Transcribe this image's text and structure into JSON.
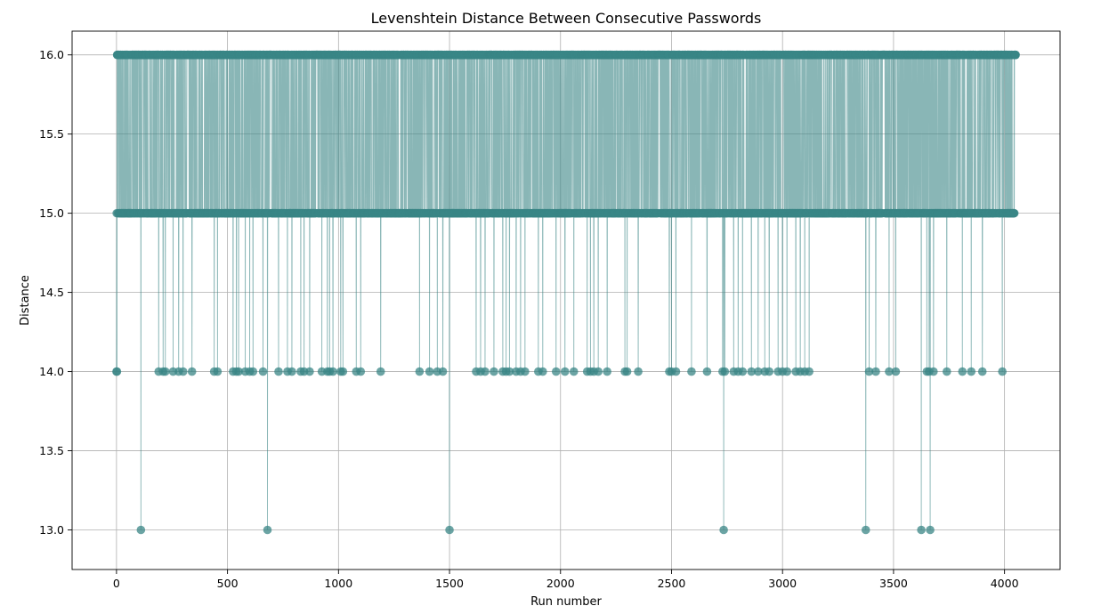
{
  "chart_data": {
    "type": "line",
    "title": "Levenshtein Distance Between Consecutive Passwords",
    "xlabel": "Run number",
    "ylabel": "Distance",
    "xlim": [
      -200,
      4250
    ],
    "ylim": [
      12.75,
      16.15
    ],
    "xticks": [
      0,
      500,
      1000,
      1500,
      2000,
      2500,
      3000,
      3500,
      4000
    ],
    "yticks": [
      13.0,
      13.5,
      14.0,
      14.5,
      15.0,
      15.5,
      16.0
    ],
    "ytick_labels": [
      "13.0",
      "13.5",
      "14.0",
      "14.5",
      "15.0",
      "15.5",
      "16.0"
    ],
    "grid": true,
    "color": "#3a8585",
    "marker": "circle",
    "x_range": [
      0,
      4050
    ],
    "series": [
      {
        "values_described": "alternating between 15 and 16 for most runs",
        "dips_to_14": [
          0,
          2,
          190,
          210,
          220,
          255,
          280,
          300,
          340,
          440,
          455,
          525,
          540,
          550,
          580,
          600,
          615,
          660,
          730,
          770,
          790,
          830,
          845,
          870,
          925,
          950,
          960,
          975,
          1010,
          1020,
          1080,
          1100,
          1190,
          1365,
          1410,
          1445,
          1470,
          1620,
          1640,
          1660,
          1700,
          1740,
          1755,
          1770,
          1800,
          1820,
          1840,
          1900,
          1920,
          1980,
          2020,
          2060,
          2120,
          2135,
          2150,
          2170,
          2210,
          2290,
          2300,
          2350,
          2490,
          2500,
          2520,
          2590,
          2660,
          2730,
          2740,
          2780,
          2800,
          2820,
          2860,
          2890,
          2920,
          2940,
          2980,
          3000,
          3020,
          3060,
          3080,
          3100,
          3120,
          3390,
          3420,
          3480,
          3510,
          3650,
          3660,
          3680,
          3740,
          3810,
          3850,
          3900,
          3990
        ],
        "dips_to_13": [
          110,
          680,
          1500,
          2735,
          3375,
          3625,
          3665
        ]
      }
    ]
  }
}
